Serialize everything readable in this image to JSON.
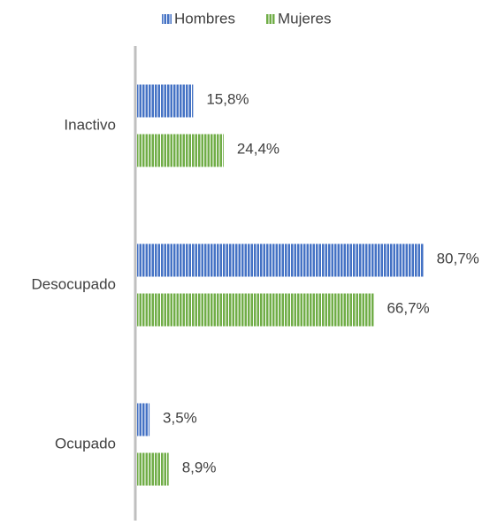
{
  "chart_data": {
    "type": "bar",
    "orientation": "horizontal",
    "categories": [
      "Inactivo",
      "Desocupado",
      "Ocupado"
    ],
    "series": [
      {
        "name": "Hombres",
        "color": "#4472c4",
        "values": [
          15.8,
          80.7,
          3.5
        ],
        "value_labels": [
          "15,8%",
          "80,7%",
          "3,5%"
        ]
      },
      {
        "name": "Mujeres",
        "color": "#70ad47",
        "values": [
          24.4,
          66.7,
          8.9
        ],
        "value_labels": [
          "24,4%",
          "66,7%",
          "8,9%"
        ]
      }
    ],
    "legend": "top"
  }
}
